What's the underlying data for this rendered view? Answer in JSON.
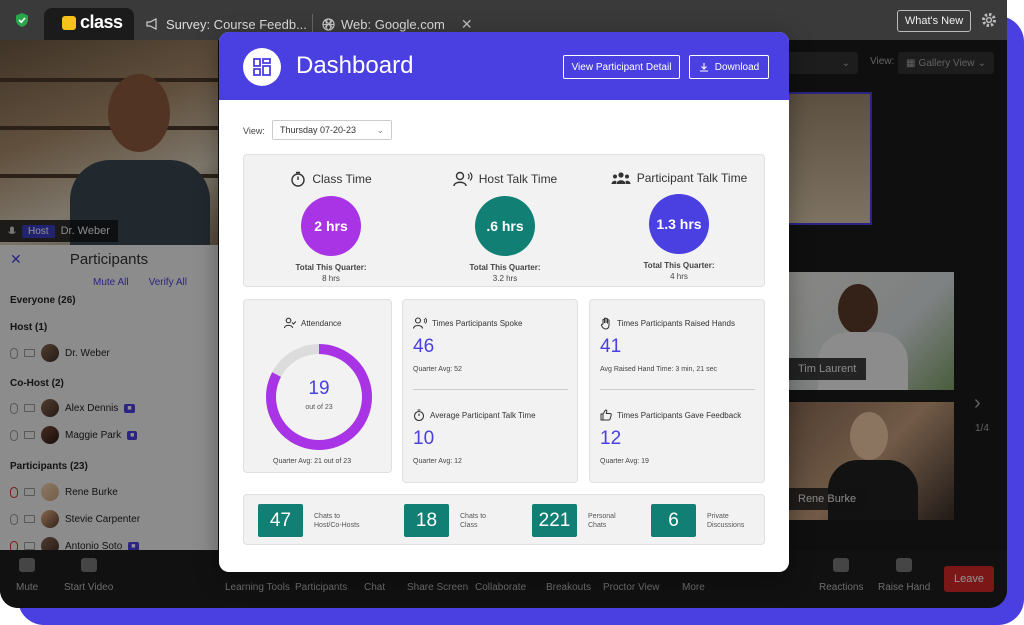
{
  "browser": {
    "app_logo": "class",
    "tabs": [
      {
        "label": "Survey: Course Feedb..."
      },
      {
        "label": "Web: Google.com"
      }
    ],
    "whats_new": "What's New"
  },
  "video": {
    "host_badge": "Host",
    "host_name": "Dr. Weber",
    "view_label": "View:",
    "view_mode": "Gallery View",
    "tiles": [
      {
        "name": "Tim Laurent"
      },
      {
        "name": "Rene Burke"
      }
    ],
    "pager": "1/4"
  },
  "participants_panel": {
    "title": "Participants",
    "mute_all": "Mute All",
    "verify_all": "Verify All",
    "everyone": "Everyone (26)",
    "host_section": "Host (1)",
    "host": "Dr. Weber",
    "cohost_section": "Co-Host (2)",
    "cohosts": [
      "Alex Dennis",
      "Maggie Park"
    ],
    "participants_section": "Participants (23)",
    "participants": [
      "Rene Burke",
      "Stevie Carpenter",
      "Antonio Soto"
    ]
  },
  "toolbar": {
    "items": [
      "Mute",
      "Start Video",
      "Learning Tools",
      "Participants",
      "Chat",
      "Share Screen",
      "Collaborate",
      "Breakouts",
      "Proctor View",
      "More",
      "Reactions",
      "Raise Hand"
    ],
    "leave": "Leave"
  },
  "dashboard": {
    "title": "Dashboard",
    "view_participant_detail": "View Participant Detail",
    "download": "Download",
    "view_label": "View:",
    "view_value": "Thursday 07-20-23",
    "class_time": {
      "label": "Class Time",
      "value": "2 hrs",
      "sub_label": "Total This Quarter:",
      "sub_value": "8 hrs",
      "color": "#a834e6"
    },
    "host_talk": {
      "label": "Host Talk Time",
      "value": ".6 hrs",
      "sub_label": "Total This Quarter:",
      "sub_value": "3.2 hrs",
      "color": "#117f74"
    },
    "participant_talk": {
      "label": "Participant Talk Time",
      "value": "1.3 hrs",
      "sub_label": "Total This Quarter:",
      "sub_value": "4 hrs",
      "color": "#4a3fe0"
    },
    "attendance": {
      "label": "Attendance",
      "value": "19",
      "of": "out of 23",
      "avg": "Quarter Avg: 21 out of 23",
      "present": 19,
      "total": 23
    },
    "spoke": {
      "label": "Times Participants Spoke",
      "value": "46",
      "avg": "Quarter Avg: 52"
    },
    "avg_talk": {
      "label": "Average Participant Talk Time",
      "value": "10",
      "avg": "Quarter Avg: 12"
    },
    "raised": {
      "label": "Times Participants Raised Hands",
      "value": "41",
      "avg": "Avg Raised Hand Time: 3 min, 21 sec"
    },
    "feedback": {
      "label": "Times Participants Gave Feedback",
      "value": "12",
      "avg": "Quarter Avg: 19"
    },
    "chats": [
      {
        "value": "47",
        "label_1": "Chats to",
        "label_2": "Host/Co-Hosts"
      },
      {
        "value": "18",
        "label_1": "Chats to",
        "label_2": "Class"
      },
      {
        "value": "221",
        "label_1": "Personal",
        "label_2": "Chats"
      },
      {
        "value": "6",
        "label_1": "Private",
        "label_2": "Discussions"
      }
    ]
  }
}
